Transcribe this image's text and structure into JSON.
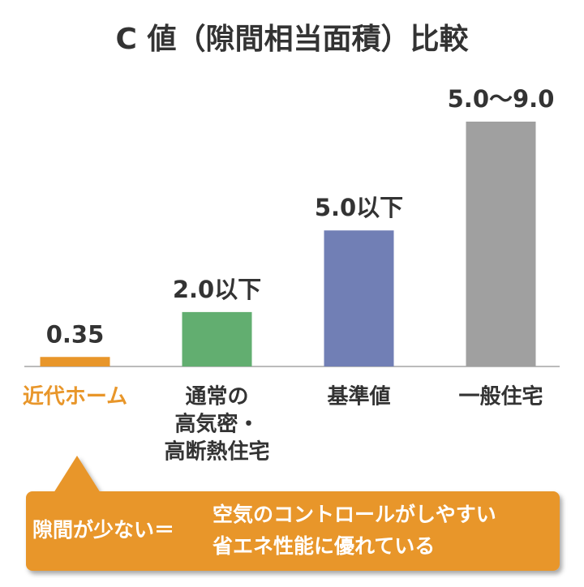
{
  "chart_data": {
    "type": "bar",
    "title": "C 値（隙間相当面積）比較",
    "categories": [
      [
        "近代ホーム"
      ],
      [
        "通常の",
        "高気密・",
        "高断熱住宅"
      ],
      [
        "基準値"
      ],
      [
        "一般住宅"
      ]
    ],
    "values": [
      0.35,
      2.0,
      5.0,
      9.0
    ],
    "value_labels": [
      "0.35",
      "2.0以下",
      "5.0以下",
      "5.0～9.0"
    ],
    "colors": [
      "#e8962a",
      "#62ae70",
      "#717fb5",
      "#a0a0a0"
    ],
    "highlight_index": 0,
    "callout": {
      "label": "隙間が少ない＝",
      "lines": [
        "空気のコントロールがしやすい",
        "省エネ性能に優れている"
      ]
    }
  }
}
